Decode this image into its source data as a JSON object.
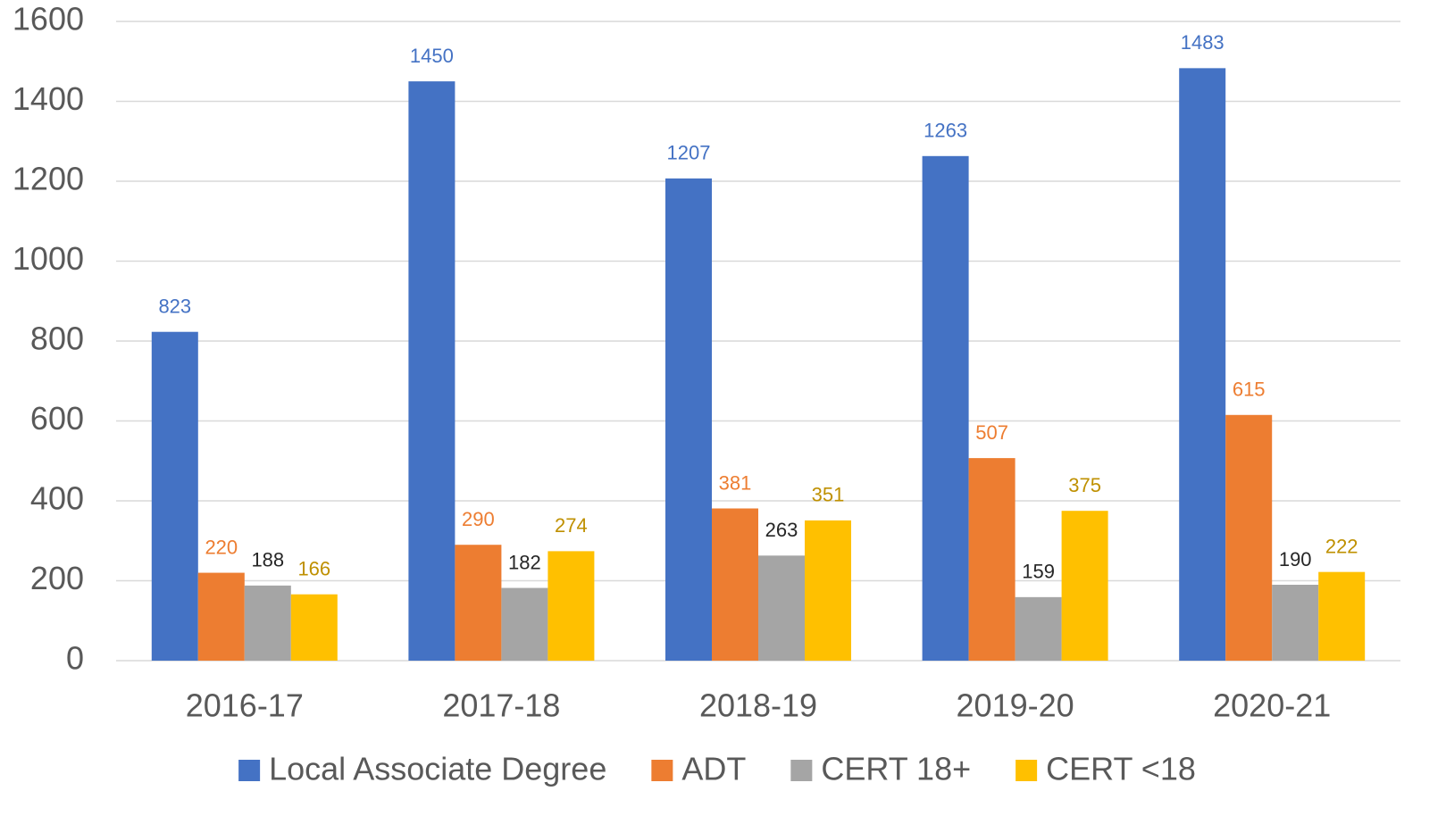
{
  "chart_data": {
    "type": "bar",
    "categories": [
      "2016-17",
      "2017-18",
      "2018-19",
      "2019-20",
      "2020-21"
    ],
    "series": [
      {
        "name": "Local Associate Degree",
        "color": "#4472c4",
        "label_color": "#4472c4",
        "values": [
          823,
          1450,
          1207,
          1263,
          1483
        ]
      },
      {
        "name": "ADT",
        "color": "#ed7d31",
        "label_color": "#ed7d31",
        "values": [
          220,
          290,
          381,
          507,
          615
        ]
      },
      {
        "name": "CERT 18+",
        "color": "#a5a5a5",
        "label_color": "#262626",
        "values": [
          188,
          182,
          263,
          159,
          190
        ]
      },
      {
        "name": "CERT <18",
        "color": "#ffc000",
        "label_color": "#bf9000",
        "values": [
          166,
          274,
          351,
          375,
          222
        ]
      }
    ],
    "ylim": [
      0,
      1600
    ],
    "yticks": [
      0,
      200,
      400,
      600,
      800,
      1000,
      1200,
      1400,
      1600
    ],
    "grid": true,
    "legend": "bottom"
  }
}
